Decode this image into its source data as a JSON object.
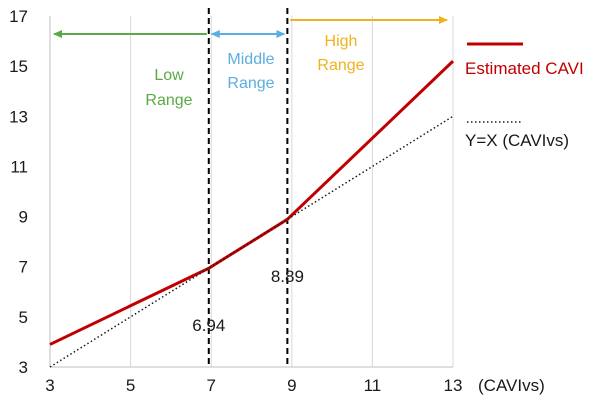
{
  "chart_data": {
    "type": "line",
    "xlim": [
      3,
      13
    ],
    "ylim": [
      3,
      17
    ],
    "xticks": [
      "3",
      "5",
      "7",
      "9",
      "11",
      "13"
    ],
    "yticks": [
      "3",
      "5",
      "7",
      "9",
      "11",
      "13",
      "15",
      "17"
    ],
    "xlabel": "(CAVIvs)",
    "grid": "vertical lines at each x tick",
    "series": [
      {
        "name": "Estimated CAVI",
        "color": "#c00000",
        "style": "solid",
        "x": [
          3,
          6.94,
          8.89,
          13
        ],
        "y": [
          3.9,
          6.94,
          8.89,
          15.2
        ]
      },
      {
        "name": "Y=X (CAVIvs)",
        "color": "#1a1a1a",
        "style": "dotted",
        "x": [
          3,
          13
        ],
        "y": [
          3,
          13
        ]
      }
    ],
    "thresholds": [
      {
        "x": 6.94,
        "label": "6.94"
      },
      {
        "x": 8.89,
        "label": "8.89"
      }
    ],
    "ranges": [
      {
        "label_line1": "Low",
        "label_line2": "Range",
        "color": "#5aaa46",
        "from": 6.94,
        "to": 3,
        "direction": "left"
      },
      {
        "label_line1": "Middle",
        "label_line2": "Range",
        "color": "#5aaee0",
        "from": 6.94,
        "to": 8.89,
        "direction": "both"
      },
      {
        "label_line1": "High",
        "label_line2": "Range",
        "color": "#f0b21e",
        "from": 8.89,
        "to": 13,
        "direction": "right"
      }
    ],
    "legend_placement": "right"
  }
}
